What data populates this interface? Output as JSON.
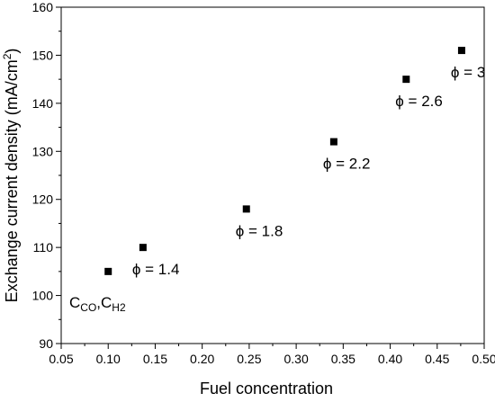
{
  "chart_data": {
    "type": "scatter",
    "title": "",
    "xlabel": "Fuel concentration",
    "ylabel": "Exchange current density (mA/cm²)",
    "ylabel_parts": {
      "main": "Exchange current density (mA/cm",
      "sup": "2",
      "tail": ")"
    },
    "xlim": [
      0.05,
      0.5
    ],
    "ylim": [
      90,
      160
    ],
    "x_ticks": [
      "0.05",
      "0.10",
      "0.15",
      "0.20",
      "0.25",
      "0.30",
      "0.35",
      "0.40",
      "0.45",
      "0.50"
    ],
    "y_ticks": [
      "90",
      "100",
      "110",
      "120",
      "130",
      "140",
      "150",
      "160"
    ],
    "grid": false,
    "legend": "none",
    "marker": "square",
    "marker_color": "#000000",
    "series": [
      {
        "x": [
          0.1,
          0.137,
          0.247,
          0.34,
          0.417,
          0.476
        ],
        "values": [
          105,
          110,
          118,
          132,
          145,
          151
        ]
      }
    ],
    "annotations": [
      {
        "prefix": "ϕ",
        "text": " = 1.4",
        "x": 0.137,
        "y": 110
      },
      {
        "prefix": "ϕ",
        "text": " = 1.8",
        "x": 0.247,
        "y": 118
      },
      {
        "prefix": "ϕ",
        "text": " = 2.2",
        "x": 0.34,
        "y": 132
      },
      {
        "prefix": "ϕ",
        "text": " = 2.6",
        "x": 0.417,
        "y": 145
      },
      {
        "prefix": "ϕ",
        "text": " = 3",
        "x": 0.476,
        "y": 151
      }
    ],
    "formula_label": {
      "c1": "C",
      "s1": "CO",
      "comma": ",",
      "c2": "C",
      "s2": "H2"
    }
  }
}
